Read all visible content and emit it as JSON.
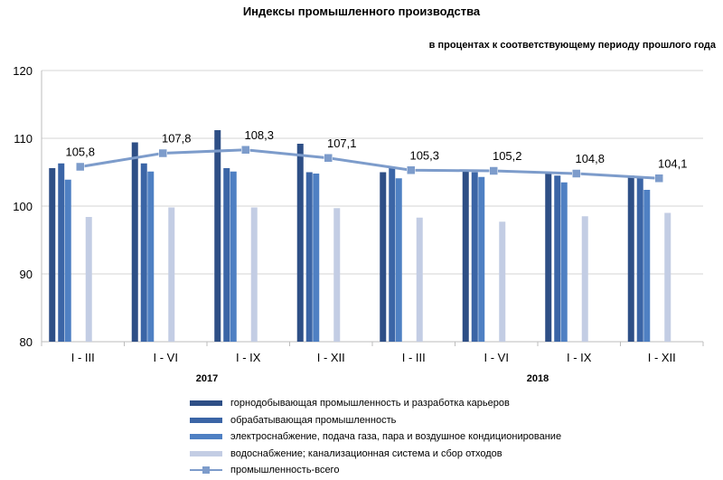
{
  "chart_data": {
    "type": "bar",
    "title": "Индексы промышленного производства",
    "subtitle": "в процентах к соответствующему периоду прошлого года",
    "categories": [
      "I - III",
      "I - VI",
      "I - IX",
      "I - XII",
      "I - III",
      "I - VI",
      "I - IX",
      "I - XII"
    ],
    "groups": [
      {
        "label": "2017",
        "start": 0,
        "count": 4
      },
      {
        "label": "2018",
        "start": 4,
        "count": 4
      }
    ],
    "ylim": [
      80,
      120
    ],
    "yticks": [
      80,
      90,
      100,
      110,
      120
    ],
    "grid": true,
    "legend_position": "bottom",
    "series": [
      {
        "name": "горнодобывающая промышленность и разработка карьеров",
        "type": "bar",
        "color": "#2e4f86",
        "values": [
          105.6,
          109.4,
          111.2,
          109.2,
          105.0,
          105.4,
          104.8,
          104.5
        ]
      },
      {
        "name": "обрабатывающая промышленность",
        "type": "bar",
        "color": "#3b65a6",
        "values": [
          106.3,
          106.3,
          105.6,
          105.0,
          105.8,
          105.0,
          104.5,
          104.4
        ]
      },
      {
        "name": "электроснабжение, подача газа, пара и воздушное кондиционирование",
        "type": "bar",
        "color": "#4f80c3",
        "values": [
          103.9,
          105.1,
          105.1,
          104.8,
          104.1,
          104.3,
          103.5,
          102.4
        ]
      },
      {
        "name": "водоснабжение; канализационная система и сбор отходов",
        "type": "bar",
        "color": "#c3cde4",
        "values": [
          98.4,
          99.8,
          99.8,
          99.7,
          98.3,
          97.7,
          98.5,
          99.0
        ]
      },
      {
        "name": "промышленность-всего",
        "type": "line",
        "color": "#7d9ccb",
        "values": [
          105.8,
          107.8,
          108.3,
          107.1,
          105.3,
          105.2,
          104.8,
          104.1
        ],
        "labels": [
          "105,8",
          "107,8",
          "108,3",
          "107,1",
          "105,3",
          "105,2",
          "104,8",
          "104,1"
        ]
      }
    ]
  }
}
